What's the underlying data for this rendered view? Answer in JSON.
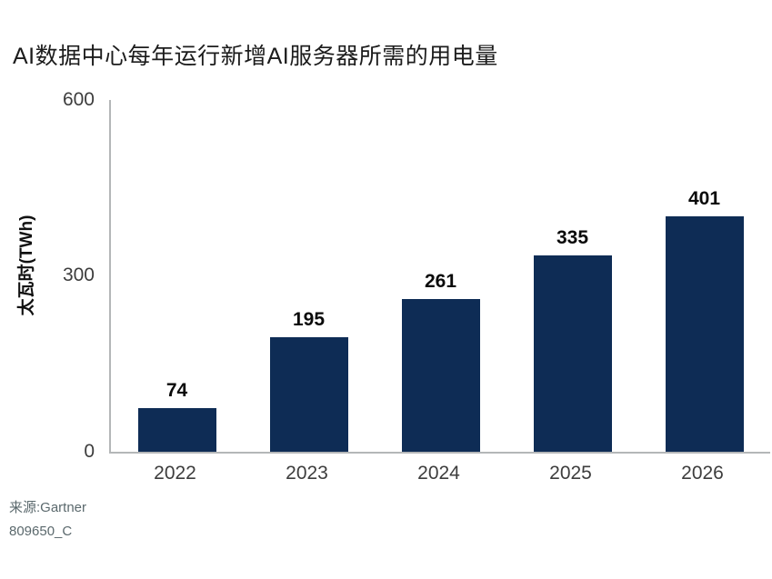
{
  "chart_data": {
    "type": "bar",
    "title": "AI数据中心每年运行新增AI服务器所需的用电量",
    "ylabel": "太瓦时(TWh)",
    "xlabel": "",
    "categories": [
      "2022",
      "2023",
      "2024",
      "2025",
      "2026"
    ],
    "values": [
      74,
      195,
      261,
      335,
      401
    ],
    "ylim": [
      0,
      600
    ],
    "yticks": [
      0,
      300,
      600
    ],
    "grid": "off",
    "legend": "none",
    "bar_color": "#0e2c55",
    "axis_line_color": "#b4b7b8",
    "value_label_color": "#0a0a0a",
    "tick_label_color": "#3d3d3d"
  },
  "source": {
    "line1": "来源:Gartner",
    "line2": "809650_C"
  }
}
